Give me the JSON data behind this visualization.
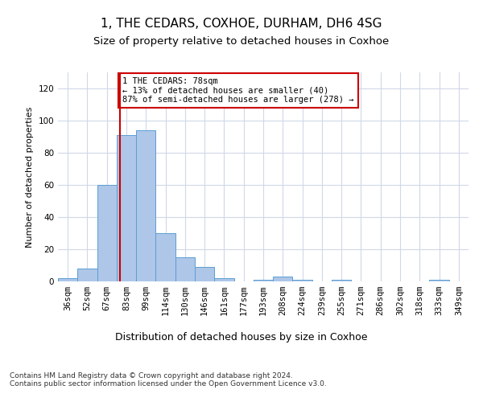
{
  "title1": "1, THE CEDARS, COXHOE, DURHAM, DH6 4SG",
  "title2": "Size of property relative to detached houses in Coxhoe",
  "xlabel": "Distribution of detached houses by size in Coxhoe",
  "ylabel": "Number of detached properties",
  "categories": [
    "36sqm",
    "52sqm",
    "67sqm",
    "83sqm",
    "99sqm",
    "114sqm",
    "130sqm",
    "146sqm",
    "161sqm",
    "177sqm",
    "193sqm",
    "208sqm",
    "224sqm",
    "239sqm",
    "255sqm",
    "271sqm",
    "286sqm",
    "302sqm",
    "318sqm",
    "333sqm",
    "349sqm"
  ],
  "values": [
    2,
    8,
    60,
    91,
    94,
    30,
    15,
    9,
    2,
    0,
    1,
    3,
    1,
    0,
    1,
    0,
    0,
    0,
    0,
    1,
    0
  ],
  "bar_color": "#aec6e8",
  "bar_edge_color": "#5a9fd4",
  "vline_x": 2.65,
  "vline_color": "#cc0000",
  "annotation_text": "1 THE CEDARS: 78sqm\n← 13% of detached houses are smaller (40)\n87% of semi-detached houses are larger (278) →",
  "annotation_box_color": "#ffffff",
  "annotation_box_edge": "#cc0000",
  "ylim": [
    0,
    130
  ],
  "yticks": [
    0,
    20,
    40,
    60,
    80,
    100,
    120
  ],
  "footer": "Contains HM Land Registry data © Crown copyright and database right 2024.\nContains public sector information licensed under the Open Government Licence v3.0.",
  "bg_color": "#ffffff",
  "grid_color": "#d0d8e8",
  "title1_fontsize": 11,
  "title2_fontsize": 9.5,
  "xlabel_fontsize": 9,
  "ylabel_fontsize": 8,
  "tick_fontsize": 7.5,
  "footer_fontsize": 6.5,
  "ann_fontsize": 7.5
}
